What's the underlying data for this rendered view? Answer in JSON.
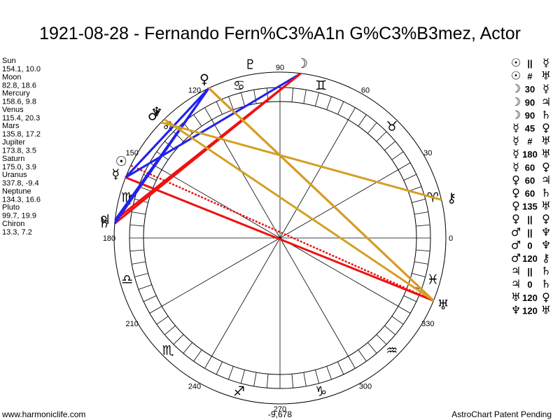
{
  "title": "1921-08-28 - Fernando Fern%C3%A1n G%C3%B3mez, Actor",
  "planets": [
    {
      "name": "Sun",
      "glyph": "☉",
      "position": "154.1, 10.0",
      "lon": 154.1
    },
    {
      "name": "Moon",
      "glyph": "☽",
      "position": "82.8, 18.6",
      "lon": 82.8
    },
    {
      "name": "Mercury",
      "glyph": "☿",
      "position": "158.6, 9.8",
      "lon": 158.6
    },
    {
      "name": "Venus",
      "glyph": "♀",
      "position": "115.4, 20.3",
      "lon": 115.4
    },
    {
      "name": "Mars",
      "glyph": "♂",
      "position": "135.8, 17.2",
      "lon": 135.8
    },
    {
      "name": "Jupiter",
      "glyph": "♃",
      "position": "173.8, 3.5",
      "lon": 173.8
    },
    {
      "name": "Saturn",
      "glyph": "♄",
      "position": "175.0, 3.9",
      "lon": 175.0
    },
    {
      "name": "Uranus",
      "glyph": "♅",
      "position": "337.8, -9.4",
      "lon": 337.8
    },
    {
      "name": "Neptune",
      "glyph": "♆",
      "position": "134.3, 16.6",
      "lon": 134.3
    },
    {
      "name": "Pluto",
      "glyph": "♇",
      "position": "99.7, 19.9",
      "lon": 99.7
    },
    {
      "name": "Chiron",
      "glyph": "⚷",
      "position": "13.3, 7.2",
      "lon": 13.3
    }
  ],
  "signs": [
    "♈",
    "♉",
    "♊",
    "♋",
    "♌",
    "♍",
    "♎",
    "♏",
    "♐",
    "♑",
    "♒",
    "♓"
  ],
  "degree_labels": [
    0,
    30,
    60,
    90,
    120,
    150,
    180,
    210,
    240,
    270,
    300,
    330
  ],
  "aspects": [
    {
      "from": "☉",
      "aspect": "||",
      "to": "☿"
    },
    {
      "from": "☉",
      "aspect": "#",
      "to": "♅",
      "color": "#ee1111",
      "dashed": true
    },
    {
      "from": "☽",
      "aspect": "30",
      "to": "☿",
      "color": "#2222ee"
    },
    {
      "from": "☽",
      "aspect": "90",
      "to": "♃",
      "color": "#ee1111"
    },
    {
      "from": "☽",
      "aspect": "90",
      "to": "♄",
      "color": "#ee1111"
    },
    {
      "from": "☿",
      "aspect": "45",
      "to": "♀",
      "color": "#2222ee"
    },
    {
      "from": "☿",
      "aspect": "#",
      "to": "♅",
      "color": "#ee1111",
      "dashed": true
    },
    {
      "from": "☿",
      "aspect": "180",
      "to": "♅",
      "color": "#ee1111"
    },
    {
      "from": "☿",
      "aspect": "60",
      "to": "♀",
      "color": "#2222ee"
    },
    {
      "from": "♀",
      "aspect": "60",
      "to": "♃",
      "color": "#2222ee"
    },
    {
      "from": "♀",
      "aspect": "60",
      "to": "♄",
      "color": "#2222ee"
    },
    {
      "from": "♀",
      "aspect": "135",
      "to": "♅",
      "color": "#ee1111"
    },
    {
      "from": "♀",
      "aspect": "||",
      "to": "♀"
    },
    {
      "from": "♂",
      "aspect": "||",
      "to": "♆"
    },
    {
      "from": "♂",
      "aspect": "0",
      "to": "♆"
    },
    {
      "from": "♂",
      "aspect": "120",
      "to": "⚷",
      "color": "#d4a020"
    },
    {
      "from": "♃",
      "aspect": "||",
      "to": "♄"
    },
    {
      "from": "♃",
      "aspect": "0",
      "to": "♄"
    },
    {
      "from": "♅",
      "aspect": "120",
      "to": "♀",
      "color": "#d4a020"
    },
    {
      "from": "♆",
      "aspect": "120",
      "to": "♅",
      "color": "#d4a020"
    }
  ],
  "footer": {
    "left": "www.harmoniclife.com",
    "center": "-9,678",
    "right": "AstroChart Patent Pending"
  }
}
